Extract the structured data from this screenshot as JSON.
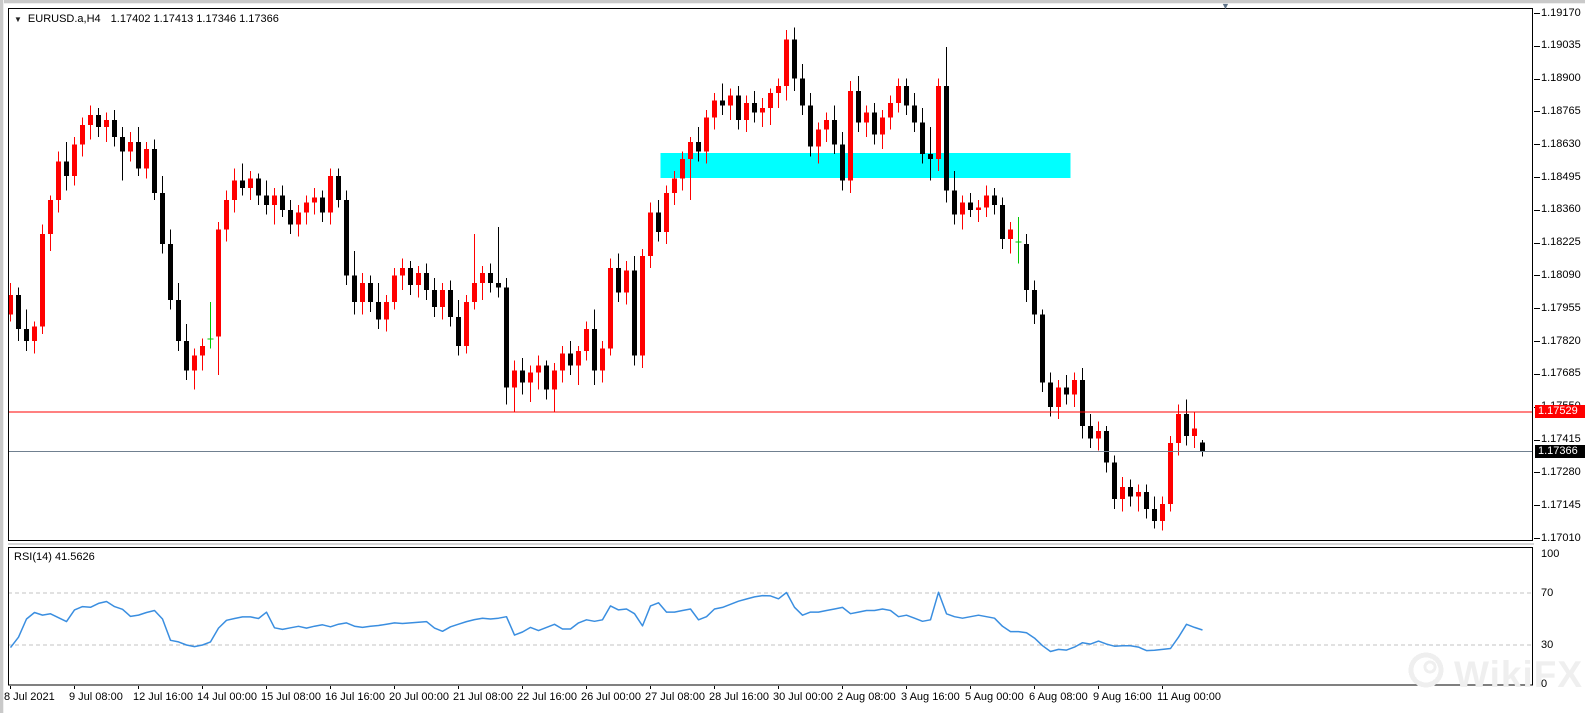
{
  "header": {
    "marker": "▼",
    "symbol": "EURUSD.a,H4",
    "ohlc": "1.17402 1.17413 1.17346 1.17366"
  },
  "watermark": {
    "text": "WikiFX"
  },
  "chart_data": {
    "type": "candlestick",
    "symbol": "EURUSD.a",
    "timeframe": "H4",
    "colors": {
      "bull": "#ff0000",
      "bear": "#000000",
      "doji": "#00c800",
      "rsi_line": "#3a8ee0",
      "zone": "#00ffff",
      "resistance_line": "#ff0000",
      "bid_line": "#708090",
      "rsi_level_dash": "#c3c3c3"
    },
    "price_axis": {
      "ticks": [
        1.1917,
        1.19035,
        1.189,
        1.18765,
        1.1863,
        1.18495,
        1.1836,
        1.18225,
        1.1809,
        1.17955,
        1.1782,
        1.17685,
        1.1755,
        1.17415,
        1.1728,
        1.17145,
        1.1701
      ]
    },
    "time_axis": {
      "labels": [
        "8 Jul 2021",
        "9 Jul 08:00",
        "12 Jul 16:00",
        "14 Jul 00:00",
        "15 Jul 08:00",
        "16 Jul 16:00",
        "20 Jul 00:00",
        "21 Jul 08:00",
        "22 Jul 16:00",
        "26 Jul 00:00",
        "27 Jul 08:00",
        "28 Jul 16:00",
        "30 Jul 00:00",
        "2 Aug 08:00",
        "3 Aug 16:00",
        "5 Aug 00:00",
        "6 Aug 08:00",
        "9 Aug 16:00",
        "11 Aug 00:00"
      ],
      "bars_per_label": 8
    },
    "resistance_zone": {
      "from_bar": 81.6,
      "to_bar": 132.1,
      "top": 1.18594,
      "bottom": 1.18491
    },
    "resistance_line": {
      "price": 1.17529,
      "label": "1.17529"
    },
    "bid_line": {
      "price": 1.17366,
      "label": "1.17366"
    },
    "candles": [
      [
        1.1793,
        1.1806,
        1.179,
        1.1801
      ],
      [
        1.1801,
        1.1804,
        1.1782,
        1.1787
      ],
      [
        1.1787,
        1.1795,
        1.1778,
        1.1782
      ],
      [
        1.1782,
        1.179,
        1.1777,
        1.1788
      ],
      [
        1.1788,
        1.183,
        1.1785,
        1.1826
      ],
      [
        1.1826,
        1.1842,
        1.1819,
        1.184
      ],
      [
        1.184,
        1.186,
        1.1835,
        1.1856
      ],
      [
        1.1856,
        1.1864,
        1.1844,
        1.185
      ],
      [
        1.185,
        1.1866,
        1.1846,
        1.1863
      ],
      [
        1.1863,
        1.1874,
        1.1858,
        1.1871
      ],
      [
        1.1871,
        1.1879,
        1.1865,
        1.1875
      ],
      [
        1.1875,
        1.1878,
        1.1866,
        1.187
      ],
      [
        1.187,
        1.1876,
        1.1864,
        1.1873
      ],
      [
        1.1873,
        1.1877,
        1.1862,
        1.1866
      ],
      [
        1.1866,
        1.187,
        1.1848,
        1.186
      ],
      [
        1.186,
        1.1868,
        1.1856,
        1.1864
      ],
      [
        1.1864,
        1.187,
        1.185,
        1.1853
      ],
      [
        1.1853,
        1.1864,
        1.1849,
        1.1861
      ],
      [
        1.1861,
        1.1865,
        1.184,
        1.1843
      ],
      [
        1.1843,
        1.185,
        1.1818,
        1.1822
      ],
      [
        1.1822,
        1.1828,
        1.1795,
        1.1799
      ],
      [
        1.1799,
        1.1806,
        1.1778,
        1.1782
      ],
      [
        1.1782,
        1.1789,
        1.1766,
        1.177
      ],
      [
        1.177,
        1.1779,
        1.1762,
        1.1776
      ],
      [
        1.1776,
        1.1783,
        1.177,
        1.178
      ],
      [
        1.17826,
        1.1798,
        1.1779,
        1.17828
      ],
      [
        1.1784,
        1.1831,
        1.1768,
        1.1828
      ],
      [
        1.1828,
        1.1844,
        1.1823,
        1.184
      ],
      [
        1.184,
        1.1853,
        1.1835,
        1.1848
      ],
      [
        1.1848,
        1.1855,
        1.1842,
        1.1845
      ],
      [
        1.1845,
        1.1852,
        1.184,
        1.1849
      ],
      [
        1.1849,
        1.1851,
        1.1838,
        1.1842
      ],
      [
        1.1842,
        1.1848,
        1.1834,
        1.1838
      ],
      [
        1.1838,
        1.1845,
        1.183,
        1.1842
      ],
      [
        1.1842,
        1.1846,
        1.1833,
        1.1836
      ],
      [
        1.1836,
        1.184,
        1.1826,
        1.183
      ],
      [
        1.183,
        1.1838,
        1.1825,
        1.1835
      ],
      [
        1.1835,
        1.1842,
        1.183,
        1.1839
      ],
      [
        1.1839,
        1.1845,
        1.1834,
        1.1841
      ],
      [
        1.1841,
        1.1844,
        1.1831,
        1.1835
      ],
      [
        1.1835,
        1.1853,
        1.183,
        1.185
      ],
      [
        1.185,
        1.1853,
        1.1837,
        1.184
      ],
      [
        1.184,
        1.1844,
        1.1805,
        1.1809
      ],
      [
        1.1809,
        1.1819,
        1.1793,
        1.1798
      ],
      [
        1.1798,
        1.181,
        1.1793,
        1.1806
      ],
      [
        1.1806,
        1.1809,
        1.1794,
        1.1798
      ],
      [
        1.1798,
        1.1806,
        1.1787,
        1.1791
      ],
      [
        1.1791,
        1.1801,
        1.1786,
        1.1798
      ],
      [
        1.1798,
        1.1812,
        1.1795,
        1.1809
      ],
      [
        1.1809,
        1.1816,
        1.1803,
        1.1812
      ],
      [
        1.1812,
        1.1815,
        1.1801,
        1.1805
      ],
      [
        1.1805,
        1.1813,
        1.18,
        1.181
      ],
      [
        1.181,
        1.1814,
        1.1799,
        1.1803
      ],
      [
        1.1803,
        1.1808,
        1.1792,
        1.1796
      ],
      [
        1.1796,
        1.1806,
        1.1791,
        1.1803
      ],
      [
        1.1803,
        1.1807,
        1.1788,
        1.1792
      ],
      [
        1.1792,
        1.1799,
        1.1776,
        1.178
      ],
      [
        1.178,
        1.1801,
        1.1777,
        1.1798
      ],
      [
        1.1798,
        1.1826,
        1.1795,
        1.1806
      ],
      [
        1.1806,
        1.1813,
        1.1799,
        1.181
      ],
      [
        1.181,
        1.1814,
        1.1802,
        1.1806
      ],
      [
        1.1806,
        1.1829,
        1.18,
        1.1804
      ],
      [
        1.1804,
        1.1808,
        1.1756,
        1.1763
      ],
      [
        1.1763,
        1.1774,
        1.1753,
        1.177
      ],
      [
        1.177,
        1.1775,
        1.176,
        1.1765
      ],
      [
        1.1765,
        1.1772,
        1.1757,
        1.1769
      ],
      [
        1.1769,
        1.1776,
        1.1762,
        1.1772
      ],
      [
        1.1772,
        1.1774,
        1.1758,
        1.1762
      ],
      [
        1.1762,
        1.1773,
        1.1753,
        1.177
      ],
      [
        1.177,
        1.178,
        1.1765,
        1.1777
      ],
      [
        1.1777,
        1.1782,
        1.1768,
        1.1772
      ],
      [
        1.1772,
        1.178,
        1.1764,
        1.1778
      ],
      [
        1.1778,
        1.179,
        1.1774,
        1.1787
      ],
      [
        1.1787,
        1.1795,
        1.1764,
        1.177
      ],
      [
        1.177,
        1.1782,
        1.1765,
        1.1779
      ],
      [
        1.1779,
        1.1816,
        1.1776,
        1.1812
      ],
      [
        1.1812,
        1.1818,
        1.1798,
        1.1802
      ],
      [
        1.1802,
        1.1815,
        1.1797,
        1.1811
      ],
      [
        1.1811,
        1.1817,
        1.1772,
        1.1776
      ],
      [
        1.1776,
        1.182,
        1.1771,
        1.1817
      ],
      [
        1.1817,
        1.1839,
        1.1812,
        1.1835
      ],
      [
        1.1835,
        1.184,
        1.1823,
        1.1827
      ],
      [
        1.1827,
        1.1846,
        1.1822,
        1.1843
      ],
      [
        1.1843,
        1.1852,
        1.1838,
        1.1849
      ],
      [
        1.1849,
        1.186,
        1.1844,
        1.1857
      ],
      [
        1.1857,
        1.1866,
        1.184,
        1.1864
      ],
      [
        1.1864,
        1.187,
        1.1856,
        1.186
      ],
      [
        1.186,
        1.1877,
        1.1855,
        1.1874
      ],
      [
        1.1874,
        1.1884,
        1.1869,
        1.1881
      ],
      [
        1.1881,
        1.1888,
        1.1875,
        1.1879
      ],
      [
        1.1879,
        1.1886,
        1.1873,
        1.1883
      ],
      [
        1.1883,
        1.1887,
        1.1869,
        1.1873
      ],
      [
        1.1873,
        1.1883,
        1.1868,
        1.188
      ],
      [
        1.188,
        1.1885,
        1.1872,
        1.1876
      ],
      [
        1.1876,
        1.1882,
        1.187,
        1.1878
      ],
      [
        1.1878,
        1.1886,
        1.1871,
        1.1884
      ],
      [
        1.1884,
        1.189,
        1.1878,
        1.1887
      ],
      [
        1.1887,
        1.191,
        1.1881,
        1.1906
      ],
      [
        1.1906,
        1.1911,
        1.1885,
        1.189
      ],
      [
        1.189,
        1.1896,
        1.1875,
        1.1879
      ],
      [
        1.1879,
        1.1884,
        1.1858,
        1.1862
      ],
      [
        1.1862,
        1.1872,
        1.1855,
        1.1869
      ],
      [
        1.1869,
        1.1876,
        1.1864,
        1.1873
      ],
      [
        1.1873,
        1.1879,
        1.1859,
        1.1863
      ],
      [
        1.1863,
        1.1868,
        1.1844,
        1.1848
      ],
      [
        1.1848,
        1.1889,
        1.1843,
        1.1885
      ],
      [
        1.1885,
        1.1891,
        1.1868,
        1.1872
      ],
      [
        1.1872,
        1.1879,
        1.1866,
        1.1876
      ],
      [
        1.1876,
        1.188,
        1.1863,
        1.1867
      ],
      [
        1.1867,
        1.1877,
        1.1861,
        1.1874
      ],
      [
        1.1874,
        1.1883,
        1.1869,
        1.188
      ],
      [
        1.188,
        1.189,
        1.1876,
        1.1887
      ],
      [
        1.1887,
        1.189,
        1.1875,
        1.1879
      ],
      [
        1.1879,
        1.1884,
        1.1868,
        1.1872
      ],
      [
        1.1872,
        1.1878,
        1.1855,
        1.1859
      ],
      [
        1.1859,
        1.187,
        1.1848,
        1.1857
      ],
      [
        1.1857,
        1.189,
        1.1852,
        1.1887
      ],
      [
        1.1887,
        1.1903,
        1.1839,
        1.1844
      ],
      [
        1.1844,
        1.1852,
        1.183,
        1.1834
      ],
      [
        1.1834,
        1.1842,
        1.1828,
        1.1839
      ],
      [
        1.1839,
        1.1843,
        1.1833,
        1.1836
      ],
      [
        1.1836,
        1.184,
        1.1831,
        1.1837
      ],
      [
        1.1837,
        1.1846,
        1.1833,
        1.1842
      ],
      [
        1.1842,
        1.1845,
        1.1834,
        1.1838
      ],
      [
        1.1838,
        1.1841,
        1.182,
        1.1824
      ],
      [
        1.1824,
        1.1831,
        1.1818,
        1.1828
      ],
      [
        1.18225,
        1.1833,
        1.1814,
        1.18227
      ],
      [
        1.1822,
        1.1826,
        1.1798,
        1.1803
      ],
      [
        1.1803,
        1.1807,
        1.1789,
        1.1793
      ],
      [
        1.1793,
        1.1795,
        1.1761,
        1.1765
      ],
      [
        1.1765,
        1.1769,
        1.1751,
        1.1755
      ],
      [
        1.1755,
        1.1766,
        1.175,
        1.1763
      ],
      [
        1.1763,
        1.1768,
        1.1756,
        1.176
      ],
      [
        1.176,
        1.1769,
        1.1755,
        1.1766
      ],
      [
        1.1766,
        1.1771,
        1.1742,
        1.1747
      ],
      [
        1.1747,
        1.1752,
        1.1738,
        1.1742
      ],
      [
        1.1742,
        1.1749,
        1.1737,
        1.1745
      ],
      [
        1.1745,
        1.1747,
        1.1728,
        1.1732
      ],
      [
        1.1732,
        1.1735,
        1.1713,
        1.1717
      ],
      [
        1.1717,
        1.1726,
        1.1712,
        1.1722
      ],
      [
        1.1722,
        1.1725,
        1.1714,
        1.1718
      ],
      [
        1.1718,
        1.1723,
        1.1712,
        1.172
      ],
      [
        1.172,
        1.1723,
        1.1709,
        1.1713
      ],
      [
        1.1713,
        1.1718,
        1.1705,
        1.1708
      ],
      [
        1.1708,
        1.1718,
        1.1704,
        1.1715
      ],
      [
        1.1715,
        1.1743,
        1.1712,
        1.174
      ],
      [
        1.174,
        1.1756,
        1.1735,
        1.1752
      ],
      [
        1.1752,
        1.1758,
        1.1739,
        1.1743
      ],
      [
        1.1743,
        1.1753,
        1.1738,
        1.1746
      ],
      [
        1.17402,
        1.17413,
        1.17346,
        1.17366
      ]
    ],
    "rsi": {
      "label": "RSI(14) 41.5626",
      "current": 41.5626,
      "period": 14,
      "levels": [
        70,
        30
      ],
      "axis_labels": [
        {
          "v": 100,
          "t": "100"
        },
        {
          "v": 70,
          "t": "70"
        },
        {
          "v": 30,
          "t": "30"
        },
        {
          "v": 0,
          "t": "0"
        }
      ],
      "values": [
        28,
        36,
        50,
        55,
        53,
        54,
        51,
        48,
        57,
        59.5,
        59,
        62,
        63.5,
        59.5,
        57.5,
        52,
        53,
        55,
        56.5,
        50,
        33.6,
        32.4,
        30,
        28.8,
        30,
        32.4,
        43,
        49,
        50.4,
        51.6,
        51.6,
        50.4,
        55.2,
        43.2,
        42,
        43.2,
        44.4,
        43,
        44.5,
        45.5,
        44,
        46,
        47,
        44.5,
        43.5,
        44.5,
        45,
        46,
        47,
        46.5,
        47,
        47.5,
        48,
        43,
        40.5,
        44,
        46,
        48,
        49.5,
        50.5,
        50,
        50.6,
        51.8,
        37.6,
        40,
        43.5,
        41.1,
        43.5,
        45.9,
        42.3,
        42.3,
        47,
        49.4,
        48.2,
        49.4,
        60.1,
        57,
        57.7,
        54.1,
        44.7,
        60.1,
        62.5,
        55.3,
        55.3,
        56.5,
        57.7,
        49.4,
        51.8,
        57.7,
        58.9,
        61.3,
        63.7,
        65.4,
        67,
        68,
        67.8,
        65.5,
        70.4,
        59,
        52.9,
        55.3,
        55.3,
        56.5,
        57.7,
        58.9,
        54.1,
        55.3,
        56.5,
        56.5,
        57.7,
        56.5,
        51.8,
        52.9,
        50.6,
        48.2,
        49.4,
        70.5,
        54,
        51.8,
        50.6,
        51.8,
        52.9,
        51.8,
        50.6,
        44.4,
        40.3,
        40.3,
        39.4,
        35.3,
        29.5,
        25,
        26.6,
        26.1,
        28.4,
        31.8,
        30.7,
        33,
        30.7,
        29.1,
        29.5,
        29.5,
        28.4,
        25.7,
        25.9,
        26.6,
        27.3,
        36,
        45.9,
        43.5,
        41.56
      ]
    }
  }
}
